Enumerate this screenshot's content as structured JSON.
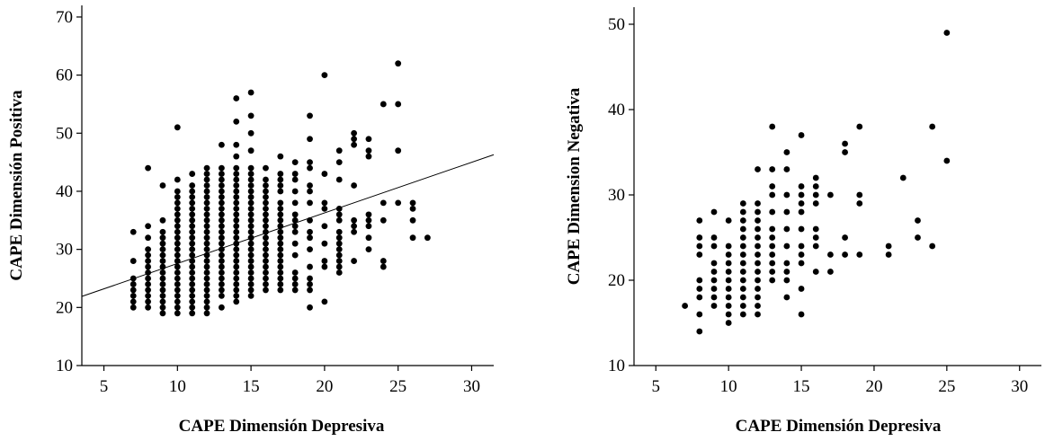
{
  "chart_data": [
    {
      "type": "scatter",
      "xlabel": "CAPE Dimensión Depresiva",
      "ylabel": "CAPE Dimensión Positiva",
      "xlim": [
        3.5,
        31.5
      ],
      "ylim": [
        10,
        72
      ],
      "xticks": [
        5,
        10,
        15,
        20,
        25,
        30
      ],
      "yticks": [
        10,
        20,
        30,
        40,
        50,
        60,
        70
      ],
      "grid": false,
      "columns": [
        {
          "x": 7,
          "y": [
            20,
            21,
            22,
            23,
            24,
            25,
            28,
            33
          ]
        },
        {
          "x": 8,
          "y": [
            20,
            21,
            22,
            23,
            24,
            25,
            26,
            27,
            28,
            29,
            30,
            32,
            34,
            44
          ]
        },
        {
          "x": 9,
          "y": [
            19,
            20,
            21,
            22,
            23,
            24,
            25,
            26,
            27,
            28,
            29,
            30,
            31,
            32,
            33,
            35,
            41
          ]
        },
        {
          "x": 10,
          "y": [
            19,
            20,
            21,
            22,
            23,
            24,
            25,
            26,
            27,
            28,
            29,
            30,
            31,
            32,
            33,
            34,
            35,
            36,
            37,
            38,
            39,
            40,
            42,
            51
          ]
        },
        {
          "x": 11,
          "y": [
            19,
            20,
            21,
            22,
            23,
            24,
            25,
            26,
            27,
            28,
            29,
            30,
            31,
            32,
            33,
            34,
            35,
            36,
            37,
            38,
            39,
            40,
            41,
            43
          ]
        },
        {
          "x": 12,
          "y": [
            19,
            20,
            21,
            22,
            23,
            24,
            25,
            26,
            27,
            28,
            29,
            30,
            31,
            32,
            33,
            34,
            35,
            36,
            37,
            38,
            39,
            40,
            41,
            42,
            43,
            44
          ]
        },
        {
          "x": 13,
          "y": [
            20,
            22,
            23,
            24,
            25,
            26,
            27,
            28,
            29,
            30,
            31,
            32,
            33,
            34,
            35,
            36,
            37,
            38,
            39,
            40,
            41,
            42,
            43,
            44,
            48
          ]
        },
        {
          "x": 14,
          "y": [
            21,
            22,
            23,
            24,
            25,
            26,
            27,
            28,
            29,
            30,
            31,
            32,
            33,
            34,
            35,
            36,
            37,
            38,
            39,
            40,
            41,
            42,
            43,
            44,
            46,
            48,
            52,
            56
          ]
        },
        {
          "x": 15,
          "y": [
            22,
            23,
            24,
            25,
            26,
            27,
            28,
            29,
            30,
            31,
            32,
            33,
            34,
            35,
            36,
            37,
            38,
            39,
            40,
            41,
            42,
            43,
            44,
            47,
            50,
            53,
            57
          ]
        },
        {
          "x": 16,
          "y": [
            23,
            24,
            25,
            26,
            27,
            28,
            29,
            30,
            31,
            32,
            33,
            34,
            35,
            36,
            37,
            38,
            39,
            40,
            41,
            42,
            44
          ]
        },
        {
          "x": 17,
          "y": [
            23,
            24,
            25,
            26,
            27,
            28,
            29,
            30,
            31,
            32,
            33,
            34,
            35,
            36,
            37,
            38,
            40,
            41,
            42,
            43,
            46
          ]
        },
        {
          "x": 18,
          "y": [
            23,
            24,
            25,
            26,
            29,
            31,
            33,
            34,
            35,
            36,
            38,
            40,
            42,
            43,
            45
          ]
        },
        {
          "x": 19,
          "y": [
            20,
            23,
            24,
            25,
            27,
            30,
            32,
            33,
            35,
            38,
            40,
            41,
            44,
            45,
            49,
            53
          ]
        },
        {
          "x": 20,
          "y": [
            21,
            27,
            28,
            31,
            34,
            37,
            38,
            43,
            60
          ]
        },
        {
          "x": 21,
          "y": [
            26,
            27,
            28,
            29,
            30,
            31,
            32,
            33,
            35,
            36,
            37,
            42,
            45,
            47
          ]
        },
        {
          "x": 22,
          "y": [
            28,
            33,
            34,
            35,
            41,
            48,
            49,
            50
          ]
        },
        {
          "x": 23,
          "y": [
            30,
            32,
            34,
            35,
            36,
            46,
            47,
            49
          ]
        },
        {
          "x": 24,
          "y": [
            27,
            28,
            35,
            38,
            55
          ]
        },
        {
          "x": 25,
          "y": [
            38,
            47,
            55,
            62
          ]
        },
        {
          "x": 26,
          "y": [
            32,
            35,
            37,
            38
          ]
        },
        {
          "x": 27,
          "y": [
            32
          ]
        }
      ],
      "fit_line": {
        "x": [
          3.5,
          31.5
        ],
        "y": [
          21.9,
          46.3
        ]
      }
    },
    {
      "type": "scatter",
      "xlabel": "CAPE Dimensión Depresiva",
      "ylabel": "CAPE Dimension Negativa",
      "xlim": [
        3.5,
        31.5
      ],
      "ylim": [
        10,
        52
      ],
      "xticks": [
        5,
        10,
        15,
        20,
        25,
        30
      ],
      "yticks": [
        10,
        20,
        30,
        40,
        50
      ],
      "grid": false,
      "columns": [
        {
          "x": 7,
          "y": [
            17
          ]
        },
        {
          "x": 8,
          "y": [
            14,
            16,
            18,
            19,
            20,
            23,
            24,
            25,
            27
          ]
        },
        {
          "x": 9,
          "y": [
            17,
            18,
            19,
            20,
            21,
            22,
            24,
            25,
            28
          ]
        },
        {
          "x": 10,
          "y": [
            15,
            16,
            17,
            18,
            19,
            20,
            21,
            22,
            23,
            24,
            27
          ]
        },
        {
          "x": 11,
          "y": [
            16,
            17,
            18,
            19,
            20,
            21,
            22,
            23,
            24,
            25,
            26,
            27,
            28,
            29
          ]
        },
        {
          "x": 12,
          "y": [
            16,
            17,
            18,
            19,
            20,
            21,
            22,
            23,
            24,
            25,
            26,
            27,
            28,
            29,
            33
          ]
        },
        {
          "x": 13,
          "y": [
            20,
            21,
            22,
            23,
            24,
            25,
            26,
            28,
            30,
            31,
            33,
            38
          ]
        },
        {
          "x": 14,
          "y": [
            18,
            20,
            21,
            22,
            24,
            26,
            28,
            30,
            33,
            35
          ]
        },
        {
          "x": 15,
          "y": [
            16,
            19,
            22,
            23,
            24,
            26,
            28,
            29,
            30,
            31,
            37
          ]
        },
        {
          "x": 16,
          "y": [
            21,
            24,
            25,
            26,
            29,
            30,
            31,
            32
          ]
        },
        {
          "x": 17,
          "y": [
            21,
            23,
            30
          ]
        },
        {
          "x": 18,
          "y": [
            23,
            25,
            35,
            36
          ]
        },
        {
          "x": 19,
          "y": [
            23,
            29,
            30,
            38
          ]
        },
        {
          "x": 21,
          "y": [
            23,
            24
          ]
        },
        {
          "x": 22,
          "y": [
            32
          ]
        },
        {
          "x": 23,
          "y": [
            25,
            27
          ]
        },
        {
          "x": 24,
          "y": [
            24,
            38
          ]
        },
        {
          "x": 25,
          "y": [
            34,
            49
          ]
        }
      ]
    }
  ]
}
